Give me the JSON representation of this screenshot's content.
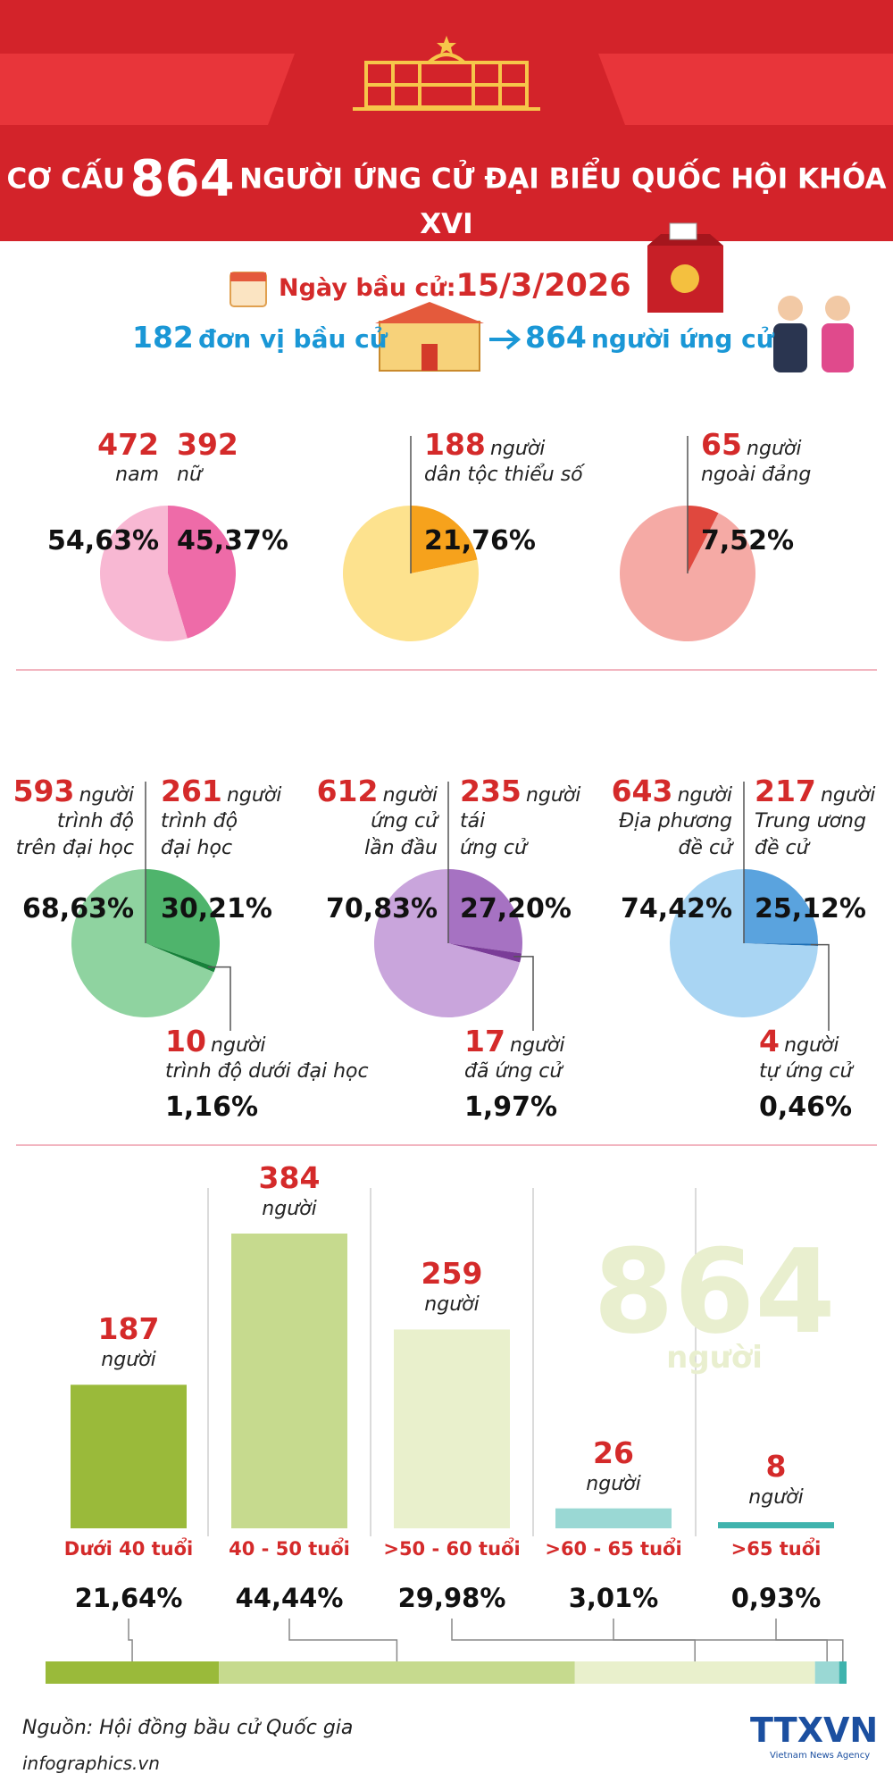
{
  "header": {
    "title_prefix": "CƠ CẤU",
    "title_number": 864,
    "title_suffix": "NGƯỜI ỨNG CỬ ĐẠI BIỂU QUỐC HỘI KHÓA XVI"
  },
  "election": {
    "date_label": "Ngày bầu cử:",
    "date": "15/3/2026",
    "units": 182,
    "units_label": "đơn vị bầu cử",
    "candidates": 864,
    "candidates_label": "người ứng cử"
  },
  "chart_data": [
    {
      "type": "pie",
      "categories": [
        "nam",
        "nữ"
      ],
      "counts": [
        472,
        392
      ],
      "values": [
        54.63,
        45.37
      ],
      "value_labels": [
        "54,63%",
        "45,37%"
      ],
      "colors": [
        "#f8b8d3",
        "#ee6ba8"
      ]
    },
    {
      "type": "pie",
      "categories": [
        null,
        "dân tộc thiểu số"
      ],
      "counts": [
        null,
        188
      ],
      "count_unit": "người",
      "values": [
        78.24,
        21.76
      ],
      "value_labels": [
        null,
        "21,76%"
      ],
      "colors": [
        "#fde28e",
        "#f6a21c"
      ]
    },
    {
      "type": "pie",
      "categories": [
        null,
        "ngoài đảng"
      ],
      "counts": [
        null,
        65
      ],
      "count_unit": "người",
      "values": [
        92.48,
        7.52
      ],
      "value_labels": [
        null,
        "7,52%"
      ],
      "colors": [
        "#f5aaa5",
        "#e0483e"
      ]
    },
    {
      "type": "pie",
      "categories": [
        "trình độ\ntrên đại học",
        "trình độ\nđại học",
        "trình độ dưới đại học"
      ],
      "counts": [
        593,
        261,
        10
      ],
      "count_unit": "người",
      "values": [
        68.63,
        30.21,
        1.16
      ],
      "value_labels": [
        "68,63%",
        "30,21%",
        "1,16%"
      ],
      "colors": [
        "#8fd3a0",
        "#4fb46c",
        "#17813a"
      ]
    },
    {
      "type": "pie",
      "categories": [
        "ứng cử\nlần đầu",
        "tái\nứng cử",
        "đã ứng cử"
      ],
      "counts": [
        612,
        235,
        17
      ],
      "count_unit": "người",
      "values": [
        70.83,
        27.2,
        1.97
      ],
      "value_labels": [
        "70,83%",
        "27,20%",
        "1,97%"
      ],
      "colors": [
        "#c9a5dc",
        "#a672c2",
        "#7a3c98"
      ]
    },
    {
      "type": "pie",
      "categories": [
        "Địa phương\nđề cử",
        "Trung ương\nđề cử",
        "tự ứng cử"
      ],
      "counts": [
        643,
        217,
        4
      ],
      "count_unit": "người",
      "values": [
        74.42,
        25.12,
        0.46
      ],
      "value_labels": [
        "74,42%",
        "25,12%",
        "0,46%"
      ],
      "colors": [
        "#a9d5f3",
        "#5aa3de",
        "#1d6fb5"
      ]
    },
    {
      "type": "bar",
      "categories": [
        "Dưới 40 tuổi",
        "40 - 50 tuổi",
        ">50 - 60 tuổi",
        ">60 - 65 tuổi",
        ">65 tuổi"
      ],
      "values": [
        187,
        384,
        259,
        26,
        8
      ],
      "value_unit": "người",
      "colors": [
        "#9aba3a",
        "#c6da8e",
        "#e9f0cc",
        "#9ad8d4",
        "#3fb3ad"
      ],
      "percentages": [
        21.64,
        44.44,
        29.98,
        3.01,
        0.93
      ],
      "percentage_labels": [
        "21,64%",
        "44,44%",
        "29,98%",
        "3,01%",
        "0,93%"
      ],
      "total": 864,
      "total_unit": "người"
    }
  ],
  "footer": {
    "source": "Nguồn: Hội đồng bầu cử Quốc gia",
    "website": "infographics.vn",
    "logo": "TTXVN",
    "logo_subtitle": "Vietnam News Agency"
  }
}
